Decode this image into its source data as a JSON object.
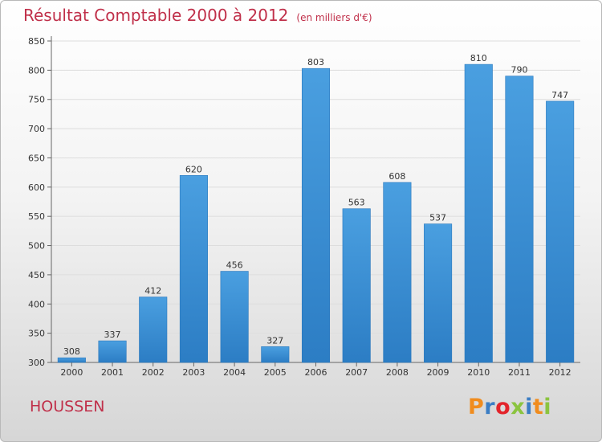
{
  "header": {
    "title": "Résultat Comptable 2000 à 2012",
    "unit": "(en milliers d'€)"
  },
  "footer": {
    "place": "HOUSSEN",
    "logo_letters": [
      "P",
      "r",
      "o",
      "x",
      "i",
      "t",
      "i"
    ],
    "logo_colors": [
      "#f08c1e",
      "#3b7dc4",
      "#e3242b",
      "#8bc43f",
      "#3b7dc4",
      "#f08c1e",
      "#8bc43f"
    ]
  },
  "colors": {
    "bar": "#4a9fe0",
    "bar_dark": "#2c7dc4",
    "title": "#c0304a",
    "grid": "#dddddd"
  },
  "chart_data": {
    "type": "bar",
    "title": "Résultat Comptable 2000 à 2012",
    "xlabel": "",
    "ylabel": "",
    "categories": [
      "2000",
      "2001",
      "2002",
      "2003",
      "2004",
      "2005",
      "2006",
      "2007",
      "2008",
      "2009",
      "2010",
      "2011",
      "2012"
    ],
    "values": [
      308,
      337,
      412,
      620,
      456,
      327,
      803,
      563,
      608,
      537,
      810,
      790,
      747
    ],
    "data_labels": [
      "308",
      "337",
      "412",
      "620",
      "456",
      "327",
      "803",
      "563",
      "608",
      "537",
      "810",
      "790",
      "747"
    ],
    "ylim": [
      300,
      850
    ],
    "yticks": [
      300,
      350,
      400,
      450,
      500,
      550,
      600,
      650,
      700,
      750,
      800,
      850
    ],
    "grid": true,
    "legend": "none"
  }
}
